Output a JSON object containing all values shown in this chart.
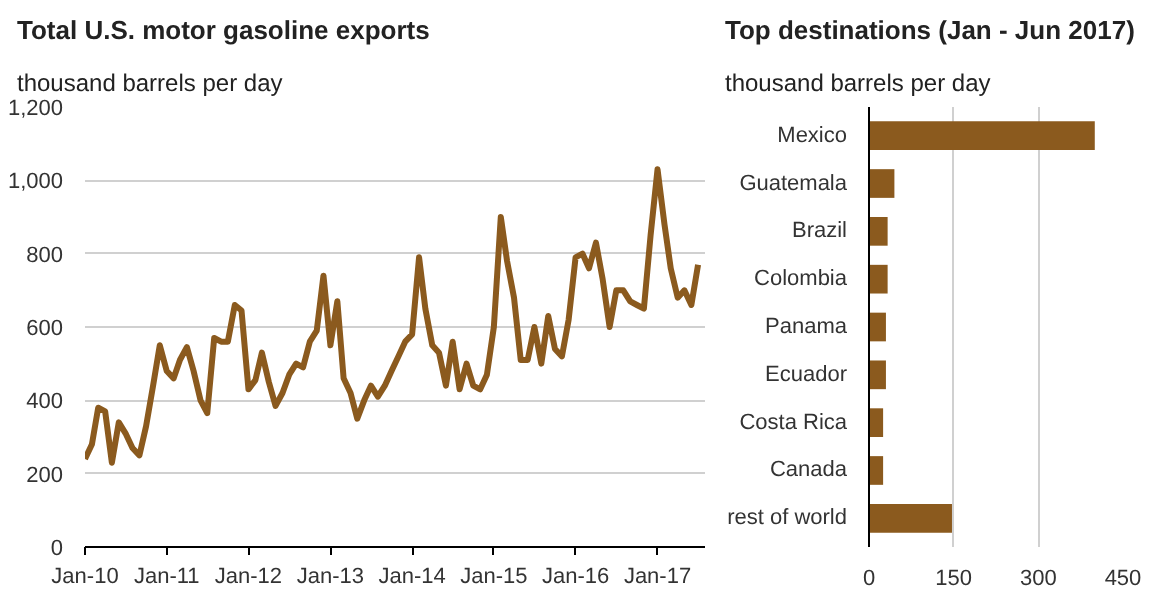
{
  "chart_data": [
    {
      "type": "line",
      "title": "Total U.S. motor gasoline exports",
      "subtitle": "thousand barrels per day",
      "x": [
        "2010-01",
        "2010-02",
        "2010-03",
        "2010-04",
        "2010-05",
        "2010-06",
        "2010-07",
        "2010-08",
        "2010-09",
        "2010-10",
        "2010-11",
        "2010-12",
        "2011-01",
        "2011-02",
        "2011-03",
        "2011-04",
        "2011-05",
        "2011-06",
        "2011-07",
        "2011-08",
        "2011-09",
        "2011-10",
        "2011-11",
        "2011-12",
        "2012-01",
        "2012-02",
        "2012-03",
        "2012-04",
        "2012-05",
        "2012-06",
        "2012-07",
        "2012-08",
        "2012-09",
        "2012-10",
        "2012-11",
        "2012-12",
        "2013-01",
        "2013-02",
        "2013-03",
        "2013-04",
        "2013-05",
        "2013-06",
        "2013-07",
        "2013-08",
        "2013-09",
        "2013-10",
        "2013-11",
        "2013-12",
        "2014-01",
        "2014-02",
        "2014-03",
        "2014-04",
        "2014-05",
        "2014-06",
        "2014-07",
        "2014-08",
        "2014-09",
        "2014-10",
        "2014-11",
        "2014-12",
        "2015-01",
        "2015-02",
        "2015-03",
        "2015-04",
        "2015-05",
        "2015-06",
        "2015-07",
        "2015-08",
        "2015-09",
        "2015-10",
        "2015-11",
        "2015-12",
        "2016-01",
        "2016-02",
        "2016-03",
        "2016-04",
        "2016-05",
        "2016-06",
        "2016-07",
        "2016-08",
        "2016-09",
        "2016-10",
        "2016-11",
        "2016-12",
        "2017-01",
        "2017-02",
        "2017-03",
        "2017-04",
        "2017-05",
        "2017-06",
        "2017-07"
      ],
      "series": [
        {
          "color": "#8b5a1e",
          "values": [
            240,
            280,
            380,
            370,
            230,
            340,
            310,
            270,
            250,
            330,
            440,
            550,
            480,
            460,
            510,
            545,
            480,
            400,
            365,
            570,
            560,
            560,
            660,
            645,
            430,
            455,
            530,
            450,
            385,
            420,
            470,
            500,
            490,
            560,
            590,
            740,
            550,
            670,
            460,
            420,
            350,
            400,
            440,
            410,
            440,
            480,
            520,
            560,
            580,
            790,
            650,
            550,
            530,
            440,
            560,
            430,
            500,
            440,
            430,
            470,
            600,
            900,
            780,
            680,
            510,
            510,
            600,
            500,
            630,
            540,
            520,
            620,
            790,
            800,
            760,
            830,
            730,
            600,
            700,
            700,
            670,
            660,
            650,
            850,
            1030,
            880,
            760,
            680,
            700,
            660,
            770
          ]
        }
      ],
      "xlim": [
        "2010-01",
        "2017-08"
      ],
      "xticks": [
        {
          "value": "2010-01",
          "label": "Jan-10"
        },
        {
          "value": "2011-01",
          "label": "Jan-11"
        },
        {
          "value": "2012-01",
          "label": "Jan-12"
        },
        {
          "value": "2013-01",
          "label": "Jan-13"
        },
        {
          "value": "2014-01",
          "label": "Jan-14"
        },
        {
          "value": "2015-01",
          "label": "Jan-15"
        },
        {
          "value": "2016-01",
          "label": "Jan-16"
        },
        {
          "value": "2017-01",
          "label": "Jan-17"
        }
      ],
      "ylim": [
        0,
        1200
      ],
      "yticks": [
        0,
        {
          "value": 200,
          "label": "200"
        },
        {
          "value": 400,
          "label": "400"
        },
        {
          "value": 600,
          "label": "600"
        },
        {
          "value": 800,
          "label": "800"
        },
        {
          "value": 1000,
          "label": "1,000"
        },
        {
          "value": 1200,
          "label": "1,200"
        }
      ],
      "grid": "y"
    },
    {
      "type": "bar",
      "orientation": "horizontal",
      "title": "Top destinations (Jan - Jun 2017)",
      "subtitle": "thousand barrels per day",
      "categories": [
        "Mexico",
        "Guatemala",
        "Brazil",
        "Colombia",
        "Panama",
        "Ecuador",
        "Costa Rica",
        "Canada",
        "rest of world"
      ],
      "values": [
        400,
        45,
        33,
        33,
        30,
        30,
        25,
        25,
        147
      ],
      "color": "#8b5a1e",
      "xlim": [
        0,
        450
      ],
      "xticks": [
        0,
        150,
        300,
        450
      ],
      "grid": "x"
    }
  ]
}
